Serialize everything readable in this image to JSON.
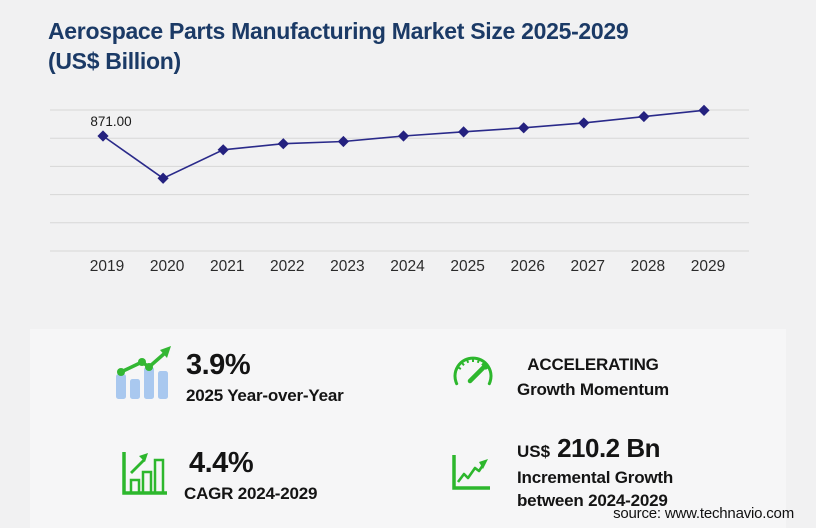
{
  "header": {
    "title_line1": "Aerospace Parts Manufacturing Market Size 2025-2029",
    "title_line2": "(US$ Billion)"
  },
  "chart_data": {
    "type": "line",
    "title": "Aerospace Parts Manufacturing Market Size 2025-2029 (US$ Billion)",
    "categories": [
      "2019",
      "2020",
      "2021",
      "2022",
      "2023",
      "2024",
      "2025",
      "2026",
      "2027",
      "2028",
      "2029"
    ],
    "series": [
      {
        "name": "Market size (US$ Billion)",
        "values": [
          871.0,
          525,
          758,
          808,
          826,
          871,
          905,
          938,
          978,
          1030,
          1081
        ]
      }
    ],
    "labeled_point": {
      "category": "2019",
      "text": "871.00"
    },
    "xlabel": "",
    "ylabel": "",
    "y_axis_tick_labels_visible": false,
    "gridlines": {
      "horizontal": 6,
      "vertical": 0
    },
    "legend": "none",
    "marker": "diamond",
    "line_color": "#2a2a8a",
    "marker_color": "#24217f"
  },
  "stats_panel": {
    "yoy": {
      "icon": "bar-chart-trend-icon",
      "value": "3.9%",
      "label": "2025 Year-over-Year"
    },
    "momentum": {
      "icon": "gauge-icon",
      "line1": "ACCELERATING",
      "line2": "Growth Momentum"
    },
    "cagr": {
      "icon": "growth-bars-icon",
      "value": "4.4%",
      "label": "CAGR 2024-2029"
    },
    "incremental": {
      "icon": "growth-line-arrow-icon",
      "currency": "US$",
      "value": "210.2 Bn",
      "label_line1": "Incremental Growth",
      "label_line2": "between 2024-2029"
    }
  },
  "source": "source: www.technavio.com",
  "colors": {
    "background": "#f1f1f2",
    "card": "#f6f6f7",
    "title_navy": "#1b3a66",
    "line_navy": "#2a2a8a",
    "accent_green": "#33b733",
    "bar_blue": "#a9c8ef",
    "gridline": "#d7d7d7"
  }
}
